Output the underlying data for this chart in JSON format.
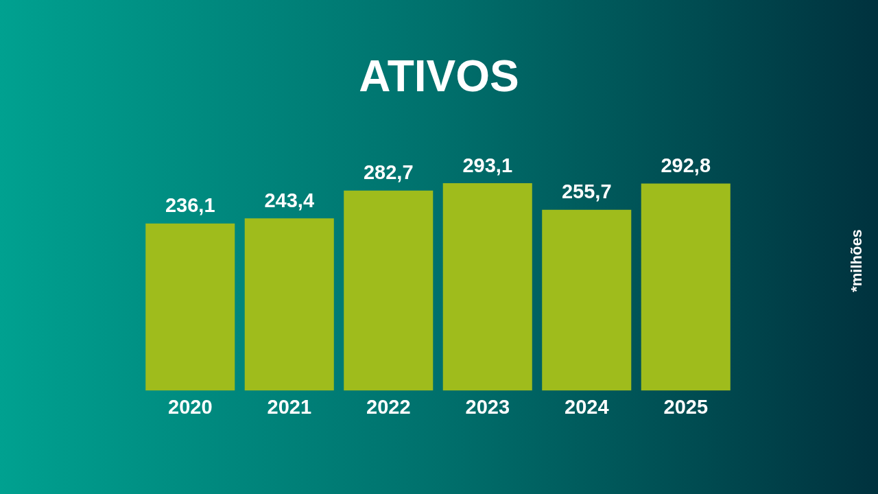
{
  "chart_data": {
    "type": "bar",
    "title": "ATIVOS",
    "categories": [
      "2020",
      "2021",
      "2022",
      "2023",
      "2024",
      "2025"
    ],
    "values": [
      236.1,
      243.4,
      282.7,
      293.1,
      255.7,
      292.8
    ],
    "color": "#9fbc1c",
    "tick_labels": "x",
    "value_labels": [
      "236,1",
      "243,4",
      "282,7",
      "293,1",
      "255,7",
      "292,8"
    ],
    "grid": false,
    "legend": false,
    "annotations": [
      "*milhões"
    ]
  }
}
